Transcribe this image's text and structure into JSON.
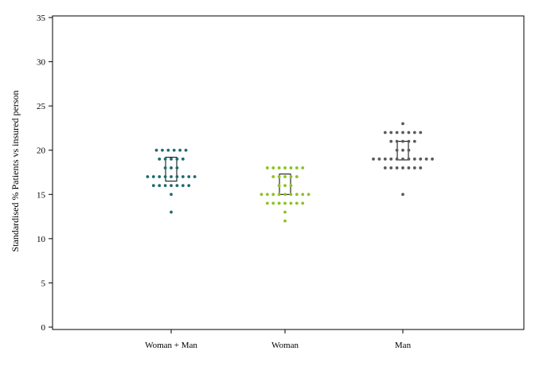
{
  "chart_data": {
    "type": "scatter",
    "subtype": "dot-strip-with-iqr-boxes",
    "title": "",
    "xlabel": "",
    "ylabel": "Standardised % Patients vs insured person",
    "ylim": [
      0,
      35
    ],
    "yticks": [
      0,
      5,
      10,
      15,
      20,
      25,
      30,
      35
    ],
    "grid": false,
    "categories": [
      "Woman + Man",
      "Woman",
      "Man"
    ],
    "series": [
      {
        "category": "Woman + Man",
        "color": "#1f6b6e",
        "box": {
          "q1": 16.5,
          "q3": 19.2
        },
        "dots": [
          {
            "y": 20,
            "n": 6
          },
          {
            "y": 19,
            "n": 5
          },
          {
            "y": 18,
            "n": 3
          },
          {
            "y": 17,
            "n": 9
          },
          {
            "y": 16,
            "n": 7
          },
          {
            "y": 15,
            "n": 1
          },
          {
            "y": 13,
            "n": 1
          }
        ]
      },
      {
        "category": "Woman",
        "color": "#8dc21f",
        "box": {
          "q1": 15.0,
          "q3": 17.3
        },
        "dots": [
          {
            "y": 18,
            "n": 7
          },
          {
            "y": 17,
            "n": 5
          },
          {
            "y": 16,
            "n": 3
          },
          {
            "y": 15,
            "n": 9
          },
          {
            "y": 14,
            "n": 7
          },
          {
            "y": 13,
            "n": 1
          },
          {
            "y": 12,
            "n": 1
          }
        ]
      },
      {
        "category": "Man",
        "color": "#5a5a5a",
        "box": {
          "q1": 18.9,
          "q3": 21.0
        },
        "dots": [
          {
            "y": 23,
            "n": 1
          },
          {
            "y": 22,
            "n": 7
          },
          {
            "y": 21,
            "n": 5
          },
          {
            "y": 20,
            "n": 3
          },
          {
            "y": 19,
            "n": 11
          },
          {
            "y": 18,
            "n": 7
          },
          {
            "y": 15,
            "n": 1
          }
        ]
      }
    ]
  }
}
